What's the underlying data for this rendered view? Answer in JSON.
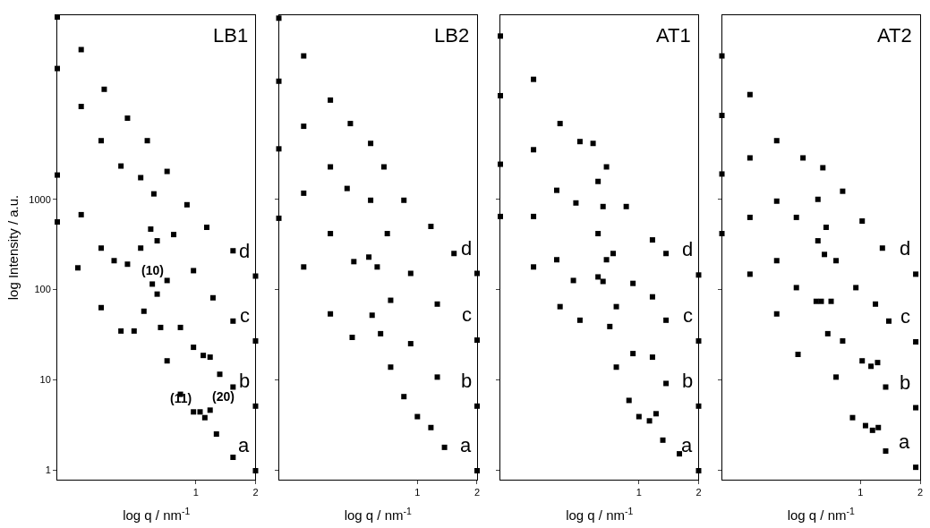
{
  "chart_data": [
    {
      "type": "scatter",
      "title": "LB1",
      "xlabel": "log q / nm$^{-1}$",
      "ylabel": "log Intensity / a.u.",
      "log": "xy",
      "xlim": [
        0.2,
        2
      ],
      "ylim": [
        0.78,
        110000
      ],
      "xticks": [
        1,
        2
      ],
      "yticks": [
        1,
        10,
        100,
        1000
      ],
      "legend": false,
      "marker": "square",
      "annotations": [
        {
          "text": "(10)",
          "x": 0.603,
          "y": 115
        },
        {
          "text": "(11)",
          "x": 0.973,
          "y": 4.4
        },
        {
          "text": "(20)",
          "x": 1.18,
          "y": 4.6
        }
      ],
      "series": [
        {
          "name": "a",
          "color": "#000000",
          "x": [
            0.2,
            0.254,
            0.333,
            0.419,
            0.488,
            0.547,
            0.603,
            0.638,
            0.664,
            0.716,
            0.836,
            0.973,
            1.05,
            1.11,
            1.18,
            1.27,
            1.54,
            2.0
          ],
          "values": [
            562,
            174,
            63,
            34.7,
            34.7,
            57.5,
            115,
            89,
            38,
            16.2,
            6.9,
            4.4,
            4.4,
            3.8,
            4.6,
            2.5,
            1.38,
            0.98
          ]
        },
        {
          "name": "b",
          "color": "#000000",
          "x": [
            0.2,
            0.264,
            0.333,
            0.387,
            0.452,
            0.527,
            0.592,
            0.638,
            0.716,
            0.836,
            0.973,
            1.09,
            1.18,
            1.32,
            1.54,
            2.0
          ],
          "values": [
            1860,
            676,
            288,
            209,
            191,
            288,
            468,
            347,
            126,
            38,
            22.9,
            18.6,
            17.8,
            11.5,
            8.3,
            5.1
          ]
        },
        {
          "name": "c",
          "color": "#000000",
          "x": [
            0.2,
            0.264,
            0.333,
            0.419,
            0.527,
            0.614,
            0.773,
            0.973,
            1.22,
            1.54,
            2.0
          ],
          "values": [
            28200,
            10700,
            4470,
            2340,
            1740,
            1150,
            407,
            162,
            81,
            44.7,
            26.9
          ]
        },
        {
          "name": "d",
          "color": "#000000",
          "x": [
            0.2,
            0.264,
            0.345,
            0.452,
            0.569,
            0.716,
            0.902,
            1.135,
            1.54,
            2.0
          ],
          "values": [
            105000,
            45700,
            16600,
            7940,
            4470,
            2040,
            871,
            490,
            269,
            141
          ]
        }
      ]
    },
    {
      "type": "scatter",
      "title": "LB2",
      "xlabel": "log q / nm$^{-1}$",
      "log": "xy",
      "xlim": [
        0.2,
        2
      ],
      "ylim": [
        0.78,
        110000
      ],
      "xticks": [
        1,
        2
      ],
      "yticks": [
        1,
        10,
        100,
        1000
      ],
      "tick_labels": "x",
      "legend": false,
      "marker": "square",
      "series": [
        {
          "name": "a",
          "color": "#000000",
          "x": [
            0.2,
            0.267,
            0.364,
            0.469,
            0.591,
            0.652,
            0.733,
            0.855,
            1.0,
            1.17,
            1.37,
            2.0
          ],
          "values": [
            617,
            178,
            53.7,
            29.5,
            51.9,
            32.4,
            13.8,
            6.5,
            3.9,
            2.95,
            1.78,
            0.98
          ]
        },
        {
          "name": "b",
          "color": "#000000",
          "x": [
            0.2,
            0.267,
            0.364,
            0.478,
            0.569,
            0.627,
            0.733,
            0.925,
            1.26,
            2.0
          ],
          "values": [
            3630,
            1170,
            417,
            204,
            229,
            178,
            76,
            25.1,
            10.7,
            5.1
          ]
        },
        {
          "name": "c",
          "color": "#000000",
          "x": [
            0.2,
            0.267,
            0.364,
            0.442,
            0.581,
            0.705,
            0.925,
            1.26,
            2.0
          ],
          "values": [
            20400,
            6460,
            2290,
            1320,
            977,
            417,
            151,
            69,
            27.5
          ]
        },
        {
          "name": "d",
          "color": "#000000",
          "x": [
            0.2,
            0.267,
            0.364,
            0.459,
            0.581,
            0.678,
            0.855,
            1.17,
            1.53,
            2.0
          ],
          "values": [
            102000,
            38900,
            12600,
            6920,
            4170,
            2290,
            977,
            501,
            251,
            151
          ]
        }
      ]
    },
    {
      "type": "scatter",
      "title": "AT1",
      "xlabel": "log q / nm$^{-1}$",
      "log": "xy",
      "xlim": [
        0.2,
        2
      ],
      "ylim": [
        0.78,
        110000
      ],
      "xticks": [
        1,
        2
      ],
      "yticks": [
        1,
        10,
        100,
        1000
      ],
      "tick_labels": "x",
      "legend": false,
      "marker": "square",
      "series": [
        {
          "name": "a",
          "color": "#000000",
          "x": [
            0.2,
            0.294,
            0.4,
            0.504,
            0.622,
            0.659,
            0.713,
            0.769,
            0.891,
            1.0,
            1.13,
            1.22,
            1.32,
            1.6,
            2.0
          ],
          "values": [
            646,
            178,
            64.6,
            45.7,
            138,
            123,
            38.9,
            13.8,
            5.9,
            3.9,
            3.5,
            4.2,
            2.14,
            1.51,
            0.98
          ]
        },
        {
          "name": "b",
          "color": "#000000",
          "x": [
            0.2,
            0.294,
            0.385,
            0.467,
            0.622,
            0.686,
            0.769,
            0.933,
            1.17,
            1.37,
            2.0
          ],
          "values": [
            2450,
            646,
            214,
            126,
            417,
            214,
            64.6,
            19.5,
            17.8,
            9.1,
            5.1
          ]
        },
        {
          "name": "c",
          "color": "#000000",
          "x": [
            0.2,
            0.294,
            0.385,
            0.481,
            0.622,
            0.659,
            0.741,
            0.933,
            1.17,
            1.37,
            2.0
          ],
          "values": [
            14100,
            3550,
            1260,
            912,
            1580,
            832,
            251,
            117,
            83,
            45.7,
            26.9
          ]
        },
        {
          "name": "d",
          "color": "#000000",
          "x": [
            0.2,
            0.294,
            0.4,
            0.504,
            0.587,
            0.686,
            0.863,
            1.17,
            1.37,
            2.0
          ],
          "values": [
            64600,
            21400,
            6920,
            4370,
            4170,
            2290,
            832,
            355,
            251,
            145
          ]
        }
      ]
    },
    {
      "type": "scatter",
      "title": "AT2",
      "xlabel": "log q / nm$^{-1}$",
      "log": "xy",
      "xlim": [
        0.2,
        2
      ],
      "ylim": [
        0.78,
        110000
      ],
      "xticks": [
        1,
        2
      ],
      "yticks": [
        1,
        10,
        100,
        1000
      ],
      "tick_labels": "x",
      "legend": false,
      "marker": "square",
      "series": [
        {
          "name": "a",
          "color": "#000000",
          "x": [
            0.2,
            0.277,
            0.378,
            0.484,
            0.598,
            0.634,
            0.684,
            0.753,
            0.912,
            1.06,
            1.15,
            1.23,
            1.34,
            1.9
          ],
          "values": [
            417,
            148,
            53.7,
            19.1,
            74,
            74,
            32.4,
            10.7,
            3.8,
            3.1,
            2.75,
            2.95,
            1.62,
            1.07
          ]
        },
        {
          "name": "b",
          "color": "#000000",
          "x": [
            0.2,
            0.277,
            0.378,
            0.475,
            0.61,
            0.658,
            0.711,
            0.813,
            1.02,
            1.13,
            1.22,
            1.34,
            1.9
          ],
          "values": [
            1910,
            631,
            209,
            105,
            347,
            245,
            74,
            26.9,
            16.2,
            14.1,
            15.5,
            8.3,
            4.9
          ]
        },
        {
          "name": "c",
          "color": "#000000",
          "x": [
            0.2,
            0.277,
            0.378,
            0.475,
            0.61,
            0.671,
            0.753,
            0.948,
            1.19,
            1.39,
            1.9
          ],
          "values": [
            8510,
            2880,
            955,
            631,
            1000,
            490,
            209,
            105,
            69,
            44.7,
            26.3
          ]
        },
        {
          "name": "d",
          "color": "#000000",
          "x": [
            0.2,
            0.277,
            0.378,
            0.513,
            0.646,
            0.813,
            1.02,
            1.29,
            1.9
          ],
          "values": [
            38900,
            14500,
            4470,
            2880,
            2240,
            1230,
            575,
            288,
            148
          ]
        }
      ]
    }
  ]
}
